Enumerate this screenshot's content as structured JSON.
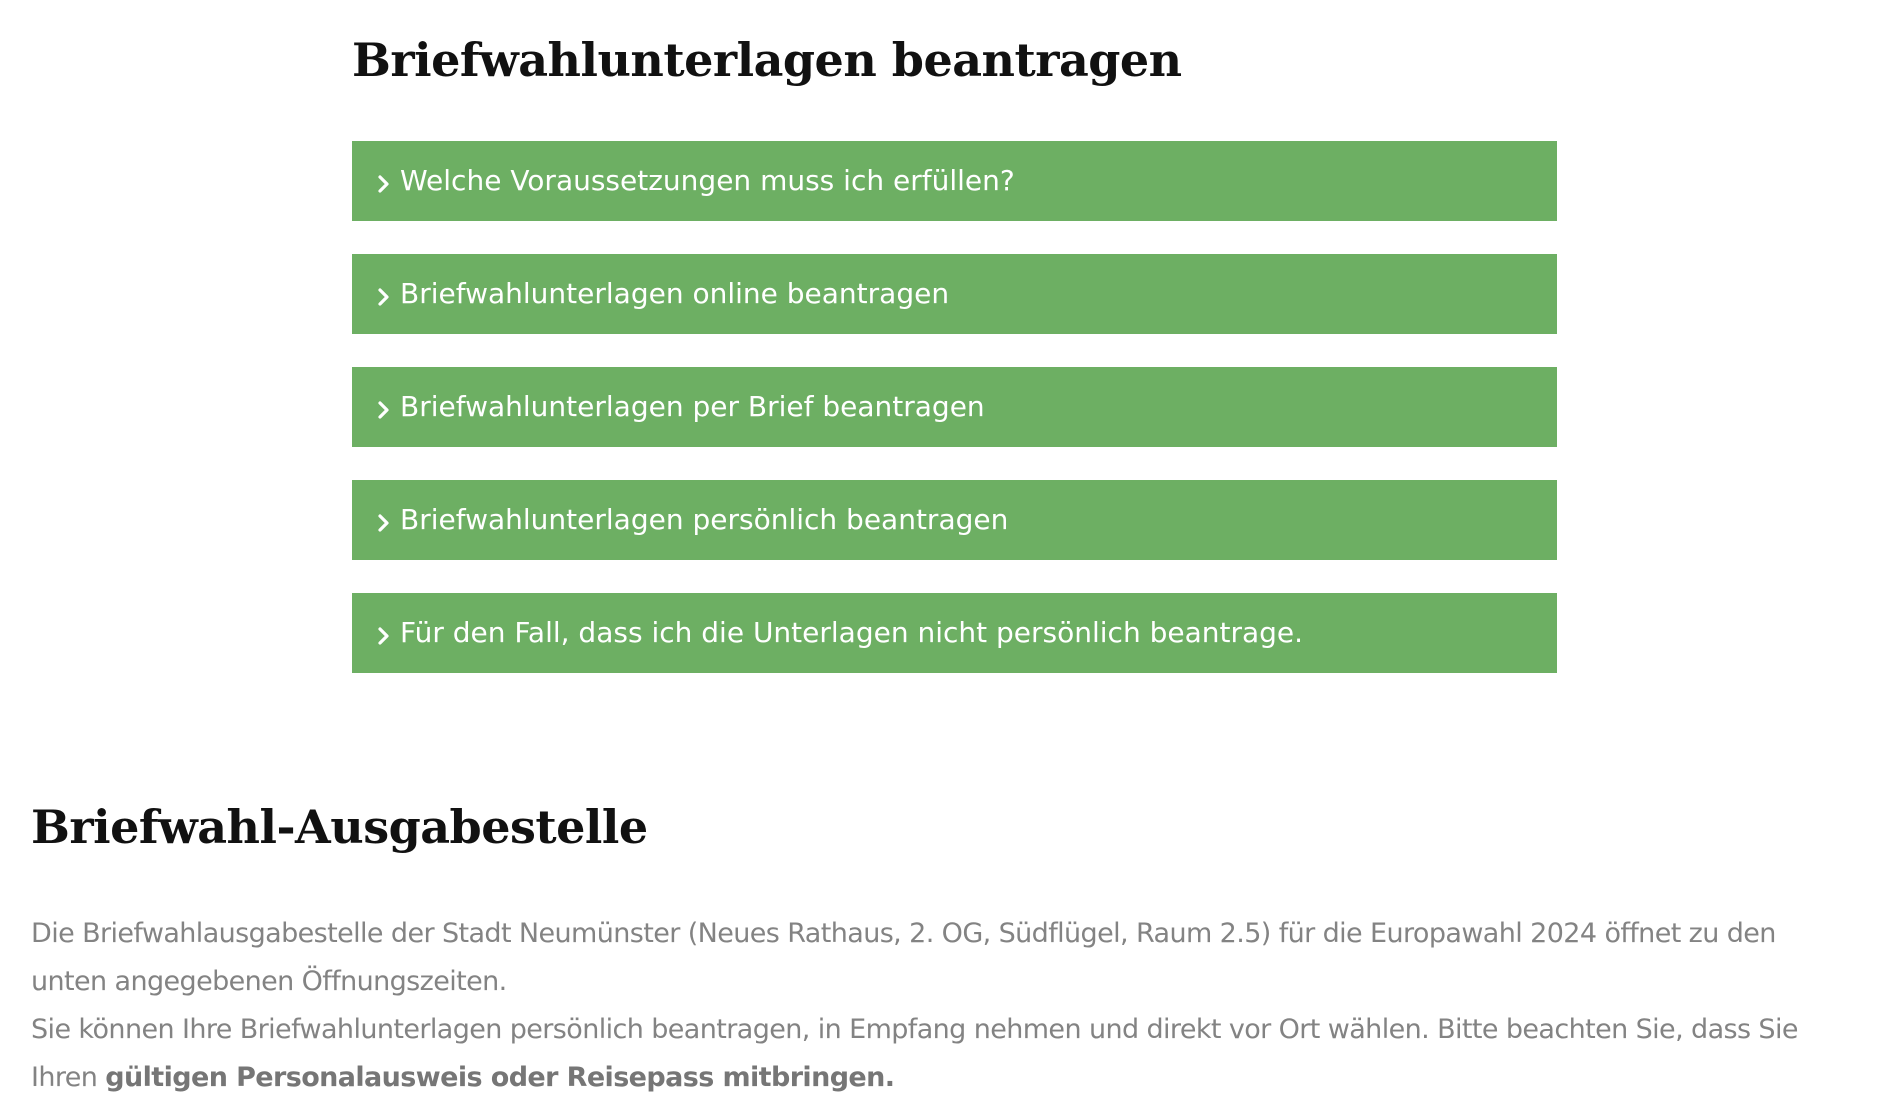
{
  "section_request": {
    "title": "Briefwahlunterlagen beantragen",
    "accordion_items": [
      {
        "label": "Welche Voraussetzungen muss ich erfüllen?"
      },
      {
        "label": "Briefwahlunterlagen online beantragen"
      },
      {
        "label": "Briefwahlunterlagen per Brief beantragen"
      },
      {
        "label": "Briefwahlunterlagen persönlich beantragen"
      },
      {
        "label": "Für den Fall, dass ich die Unterlagen nicht persönlich beantrage."
      }
    ],
    "accordion_color": "#6daf63",
    "chevron_icon": "chevron-right-icon"
  },
  "section_office": {
    "title": "Briefwahl-Ausgabestelle",
    "line1": "Die Briefwahlausgabestelle der Stadt Neumünster (Neues Rathaus, 2. OG, Südflügel, Raum 2.5) für die Europawahl 2024 öffnet zu den",
    "line2": "unten angegebenen Öffnungszeiten.",
    "line3": "Sie können Ihre Briefwahlunterlagen persönlich beantragen, in Empfang nehmen und  direkt vor Ort wählen. Bitte beachten Sie, dass Sie",
    "line4_prefix": "Ihren ",
    "line4_bold": "gültigen Personalausweis oder Reisepass mitbringen."
  }
}
